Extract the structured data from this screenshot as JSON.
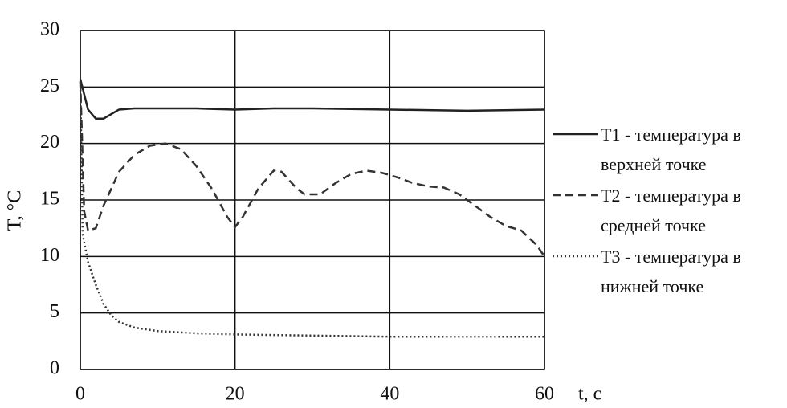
{
  "chart_data": {
    "type": "line",
    "xlabel": "t, с",
    "ylabel": "T, °C",
    "xlim": [
      0,
      60
    ],
    "xticks": [
      0,
      20,
      40,
      60
    ],
    "ylim": [
      0,
      30
    ],
    "yticks": [
      0,
      5,
      10,
      15,
      20,
      25,
      30
    ],
    "grid": true,
    "legend": "right",
    "series": [
      {
        "name": "T1 - температура в верхней точке",
        "color": "#222222",
        "line_style": "solid",
        "x": [
          0,
          1,
          2,
          3,
          4,
          5,
          7,
          10,
          15,
          20,
          25,
          30,
          40,
          50,
          60
        ],
        "values": [
          25.7,
          23,
          22.2,
          22.2,
          22.6,
          23,
          23.1,
          23.1,
          23.1,
          23.0,
          23.1,
          23.1,
          23.0,
          22.9,
          23.0
        ]
      },
      {
        "name": "T2 - температура в средней точке",
        "color": "#333333",
        "line_style": "dashed",
        "x": [
          0,
          0.5,
          1,
          2,
          3,
          5,
          7,
          9,
          11,
          13,
          15,
          17,
          19,
          20,
          21,
          23,
          25,
          26,
          28,
          29,
          31,
          33,
          35,
          37,
          39,
          41,
          43,
          45,
          47,
          49,
          51,
          53,
          55,
          57,
          59,
          60
        ],
        "values": [
          25.5,
          14,
          12.3,
          12.5,
          14.5,
          17.5,
          19,
          19.8,
          20,
          19.5,
          18,
          16,
          13.5,
          12.6,
          13.5,
          16,
          17.6,
          17.5,
          16,
          15.5,
          15.5,
          16.5,
          17.3,
          17.6,
          17.4,
          17,
          16.5,
          16.2,
          16.1,
          15.5,
          14.5,
          13.5,
          12.7,
          12.3,
          11,
          10
        ]
      },
      {
        "name": "T3 - температура в нижней точке",
        "color": "#333333",
        "line_style": "dotted",
        "x": [
          0,
          0.3,
          1,
          2,
          3,
          4,
          5,
          7,
          10,
          15,
          20,
          30,
          40,
          50,
          60
        ],
        "values": [
          25.5,
          12,
          9.5,
          7.5,
          5.8,
          4.8,
          4.2,
          3.7,
          3.4,
          3.2,
          3.1,
          3.0,
          2.9,
          2.9,
          2.9
        ]
      }
    ]
  }
}
